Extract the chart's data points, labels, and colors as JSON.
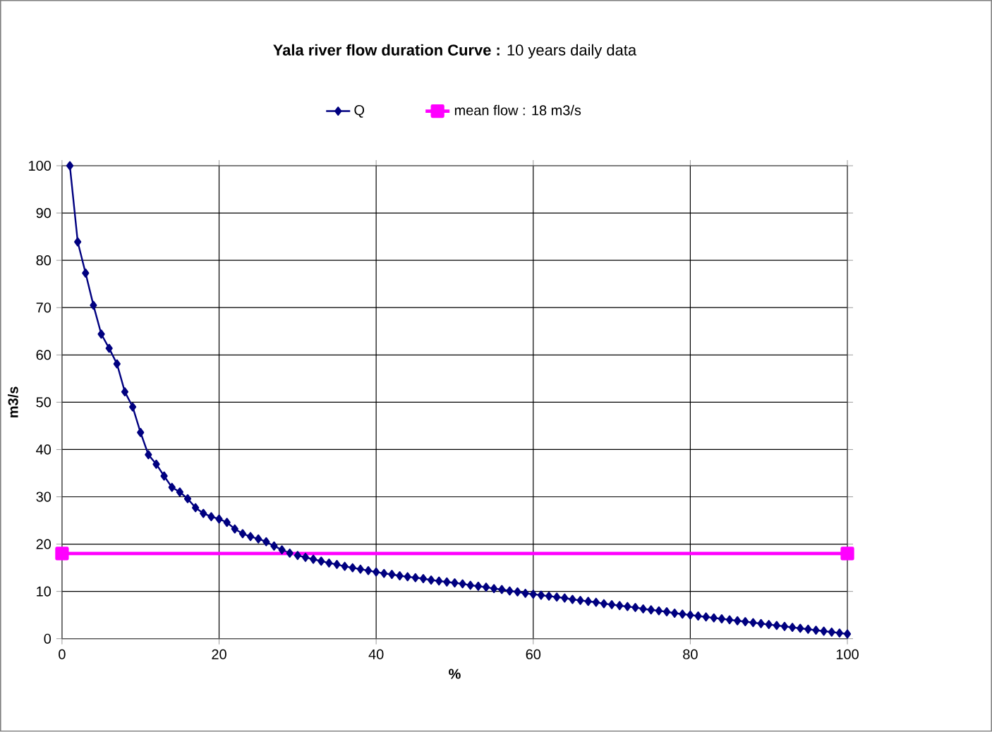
{
  "chart_data": {
    "type": "line",
    "title": "**Yala river flow duration Curve :** 10 years daily data",
    "xlabel": "%",
    "ylabel": "m3/s",
    "xlim": [
      0,
      100
    ],
    "xticks": [
      0,
      20,
      40,
      60,
      80,
      100
    ],
    "ylim": [
      0,
      100
    ],
    "yticks": [
      0,
      10,
      20,
      30,
      40,
      50,
      60,
      70,
      80,
      90,
      100
    ],
    "grid": true,
    "legend": "top",
    "line_style": "solid",
    "series": [
      {
        "name": "Q",
        "color": "#000080",
        "marker": "diamond",
        "x": [
          1,
          2,
          3,
          4,
          5,
          6,
          7,
          8,
          9,
          10,
          11,
          12,
          13,
          14,
          15,
          16,
          17,
          18,
          19,
          20,
          21,
          22,
          23,
          24,
          25,
          26,
          27,
          28,
          29,
          30,
          31,
          32,
          33,
          34,
          35,
          36,
          37,
          38,
          39,
          40,
          41,
          42,
          43,
          44,
          45,
          46,
          47,
          48,
          49,
          50,
          51,
          52,
          53,
          54,
          55,
          56,
          57,
          58,
          59,
          60,
          61,
          62,
          63,
          64,
          65,
          66,
          67,
          68,
          69,
          70,
          71,
          72,
          73,
          74,
          75,
          76,
          77,
          78,
          79,
          80,
          81,
          82,
          83,
          84,
          85,
          86,
          87,
          88,
          89,
          90,
          91,
          92,
          93,
          94,
          95,
          96,
          97,
          98,
          99,
          100
        ],
        "values": [
          100,
          83.9,
          77.3,
          70.5,
          64.4,
          61.4,
          58.1,
          52.2,
          49.0,
          43.6,
          38.9,
          36.9,
          34.4,
          32.0,
          31.0,
          29.6,
          27.7,
          26.5,
          25.8,
          25.3,
          24.6,
          23.2,
          22.2,
          21.6,
          21.1,
          20.5,
          19.6,
          18.8,
          18.1,
          17.6,
          17.2,
          16.8,
          16.4,
          16.0,
          15.7,
          15.3,
          15.0,
          14.7,
          14.4,
          14.1,
          13.8,
          13.6,
          13.3,
          13.1,
          12.9,
          12.7,
          12.4,
          12.2,
          12.0,
          11.8,
          11.6,
          11.3,
          11.1,
          10.9,
          10.6,
          10.4,
          10.1,
          9.9,
          9.6,
          9.4,
          9.2,
          9.0,
          8.8,
          8.6,
          8.3,
          8.1,
          7.9,
          7.7,
          7.4,
          7.2,
          7.0,
          6.8,
          6.6,
          6.3,
          6.1,
          5.9,
          5.7,
          5.4,
          5.2,
          5.0,
          4.8,
          4.6,
          4.4,
          4.2,
          4.0,
          3.8,
          3.6,
          3.4,
          3.2,
          3.0,
          2.8,
          2.6,
          2.4,
          2.2,
          2.0,
          1.8,
          1.6,
          1.4,
          1.2,
          1.0
        ]
      },
      {
        "name": "mean flow : 18 m3/s",
        "color": "#ff00ff",
        "marker": "square",
        "x": [
          0,
          100
        ],
        "values": [
          18,
          18
        ]
      }
    ]
  }
}
